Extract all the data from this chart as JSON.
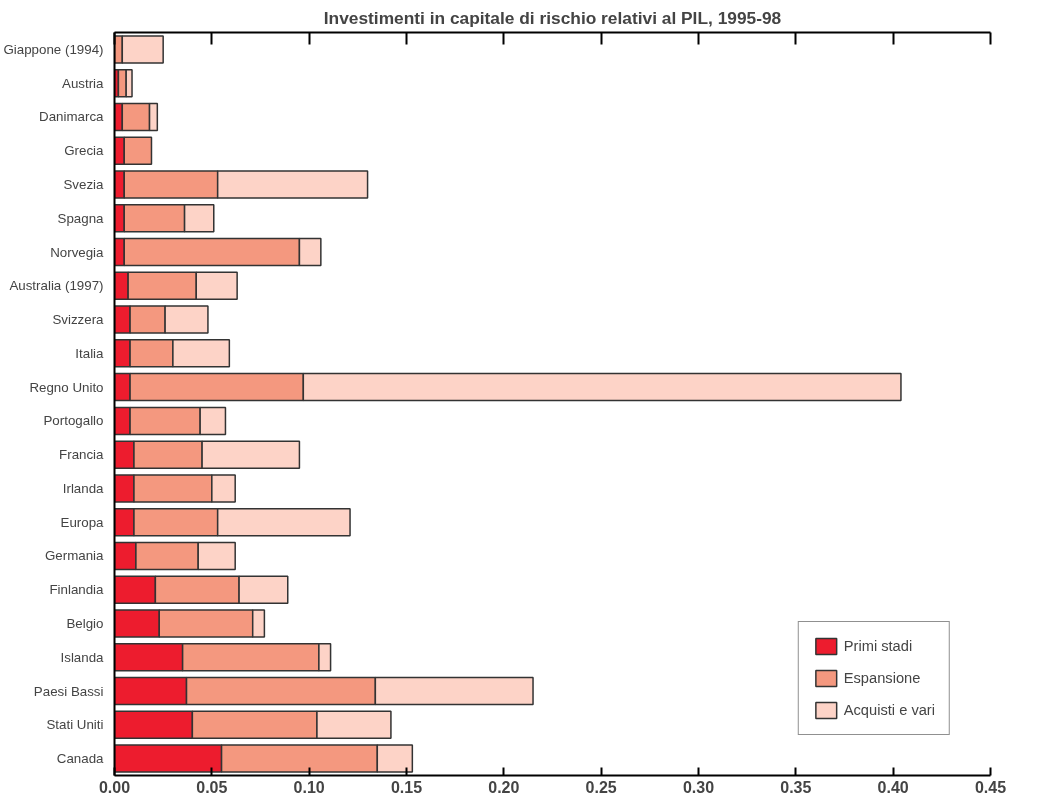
{
  "chart_data": {
    "type": "bar",
    "orientation": "horizontal",
    "stacked": true,
    "title": "Investimenti in capitale di rischio relativi al PIL, 1995-98",
    "categories": [
      "Giappone (1994)",
      "Austria",
      "Danimarca",
      "Grecia",
      "Svezia",
      "Spagna",
      "Norvegia",
      "Australia (1997)",
      "Svizzera",
      "Italia",
      "Regno Unito",
      "Portogallo",
      "Francia",
      "Irlanda",
      "Europa",
      "Germania",
      "Finlandia",
      "Belgio",
      "Islanda",
      "Paesi Bassi",
      "Stati Uniti",
      "Canada"
    ],
    "series": [
      {
        "name": "Primi stadi",
        "color": "#ed1c2e",
        "values": [
          null,
          0.002,
          0.004,
          0.005,
          0.005,
          0.005,
          0.005,
          0.007,
          0.008,
          0.008,
          0.008,
          0.008,
          0.01,
          0.01,
          0.01,
          0.011,
          0.021,
          0.023,
          0.035,
          0.037,
          0.04,
          0.055
        ]
      },
      {
        "name": "Espansione",
        "color": "#f4987f",
        "values": [
          0.004,
          0.004,
          0.014,
          0.014,
          0.048,
          0.031,
          0.09,
          0.035,
          0.018,
          0.022,
          0.089,
          0.036,
          0.035,
          0.04,
          0.043,
          0.032,
          0.043,
          0.048,
          0.07,
          0.097,
          0.064,
          0.08
        ]
      },
      {
        "name": "Acquisti e vari",
        "color": "#fdd3c7",
        "values": [
          0.021,
          0.003,
          0.004,
          null,
          0.077,
          0.015,
          0.011,
          0.021,
          0.022,
          0.029,
          0.307,
          0.013,
          0.05,
          0.012,
          0.068,
          0.019,
          0.025,
          0.006,
          0.006,
          0.081,
          0.038,
          0.018
        ]
      }
    ],
    "xlim": [
      0,
      0.45
    ],
    "xticks": [
      {
        "value": 0,
        "label": "0.00"
      },
      {
        "value": 0.05,
        "label": "0.05"
      },
      {
        "value": 0.1,
        "label": "0.10"
      },
      {
        "value": 0.15,
        "label": "0.15"
      },
      {
        "value": 0.2,
        "label": "0.20"
      },
      {
        "value": 0.25,
        "label": "0.25"
      },
      {
        "value": 0.3,
        "label": "0.30"
      },
      {
        "value": 0.35,
        "label": "0.35"
      },
      {
        "value": 0.4,
        "label": "0.40"
      },
      {
        "value": 0.45,
        "label": "0.45"
      }
    ],
    "grid": false,
    "legend": "bottom right"
  }
}
